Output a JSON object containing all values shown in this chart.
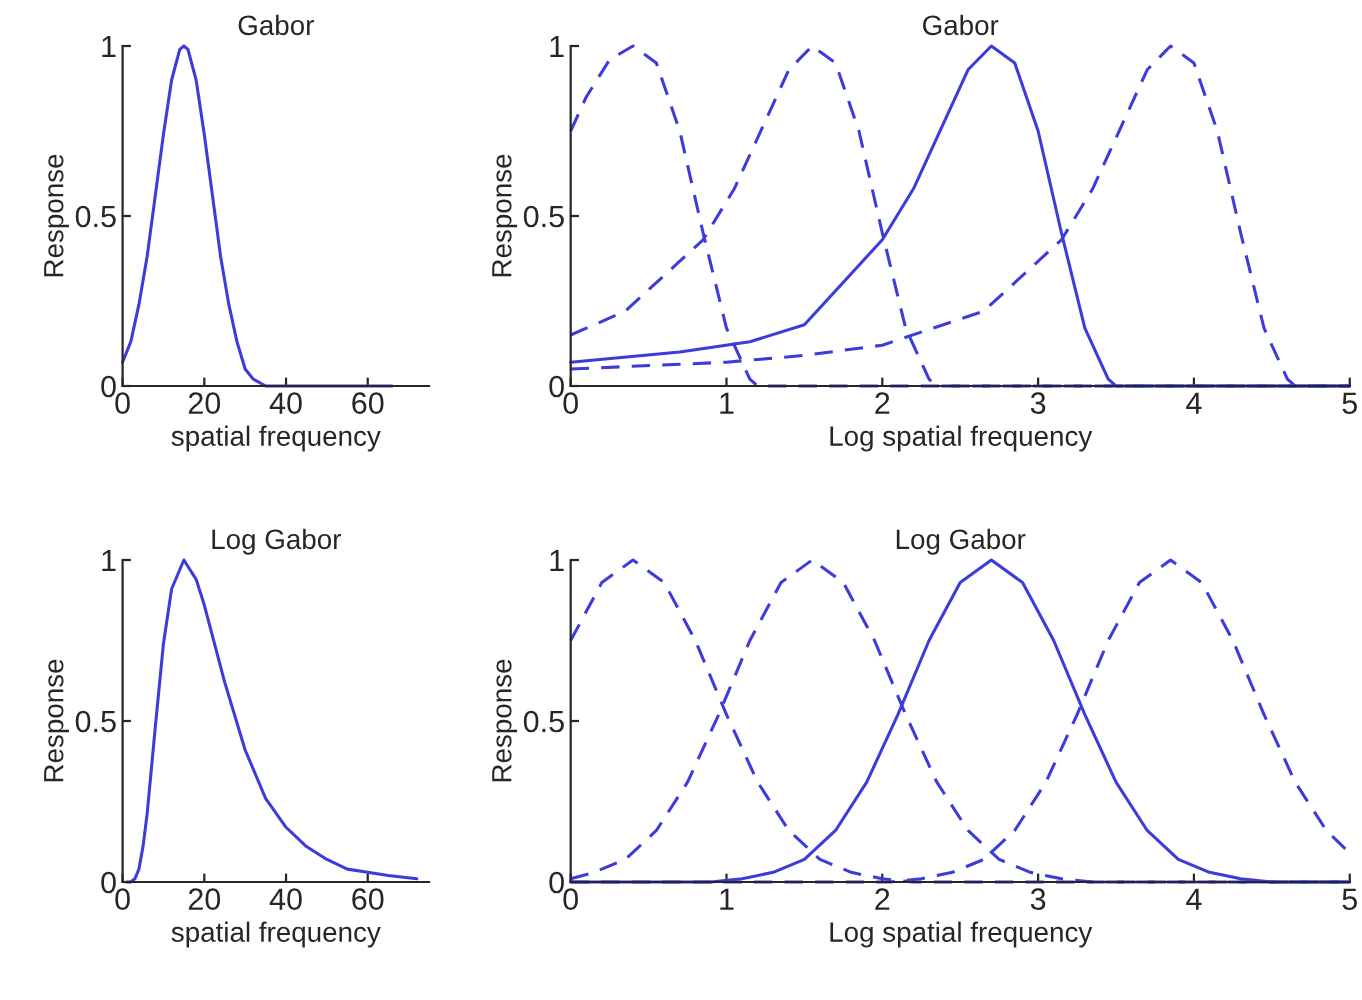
{
  "chart_data": [
    {
      "type": "line",
      "title": "Gabor",
      "xlabel": "spatial frequency",
      "ylabel": "Response",
      "xlim": [
        0,
        75
      ],
      "xticks": [
        0,
        20,
        40,
        60
      ],
      "ylim": [
        0,
        1
      ],
      "yticks": [
        0,
        0.5,
        1
      ],
      "grid": false,
      "legend": false,
      "marker": "none",
      "series": [
        {
          "color": "#3c3cdc",
          "line_style": "solid",
          "x": [
            0,
            2,
            4,
            6,
            8,
            10,
            12,
            14,
            15,
            16,
            18,
            20,
            22,
            24,
            26,
            28,
            30,
            32,
            35,
            40,
            50,
            60,
            66
          ],
          "values": [
            0.07,
            0.13,
            0.24,
            0.38,
            0.56,
            0.74,
            0.9,
            0.99,
            1,
            0.99,
            0.9,
            0.74,
            0.56,
            0.38,
            0.24,
            0.13,
            0.05,
            0.02,
            0,
            0,
            0,
            0,
            0
          ]
        }
      ]
    },
    {
      "type": "line",
      "title": "Gabor",
      "xlabel": "Log spatial frequency",
      "ylabel": "Response",
      "xlim": [
        0,
        5
      ],
      "xticks": [
        0,
        1,
        2,
        3,
        4,
        5
      ],
      "ylim": [
        0,
        1
      ],
      "yticks": [
        0,
        0.5,
        1
      ],
      "grid": false,
      "legend": false,
      "marker": "none",
      "series": [
        {
          "color": "#3c3cdc",
          "line_style": "dashed",
          "x": [
            0,
            0.1,
            0.25,
            0.4,
            0.55,
            0.7,
            0.85,
            1.0,
            1.15,
            1.2,
            2,
            3,
            4,
            5
          ],
          "values": [
            0.75,
            0.85,
            0.96,
            1,
            0.95,
            0.75,
            0.45,
            0.17,
            0.02,
            0,
            0,
            0,
            0,
            0
          ]
        },
        {
          "color": "#3c3cdc",
          "line_style": "dashed",
          "x": [
            0,
            0.35,
            0.85,
            1.05,
            1.25,
            1.4,
            1.55,
            1.7,
            1.85,
            2.0,
            2.15,
            2.3,
            2.35,
            3,
            4,
            5
          ],
          "values": [
            0.15,
            0.22,
            0.43,
            0.58,
            0.78,
            0.93,
            1,
            0.95,
            0.75,
            0.45,
            0.17,
            0.02,
            0,
            0,
            0,
            0
          ]
        },
        {
          "color": "#3c3cdc",
          "line_style": "solid",
          "x": [
            0,
            0.7,
            1.15,
            1.5,
            2.0,
            2.2,
            2.4,
            2.55,
            2.7,
            2.85,
            3.0,
            3.15,
            3.3,
            3.45,
            3.5,
            4,
            5
          ],
          "values": [
            0.07,
            0.1,
            0.13,
            0.18,
            0.43,
            0.58,
            0.78,
            0.93,
            1,
            0.95,
            0.75,
            0.45,
            0.17,
            0.02,
            0,
            0,
            0
          ]
        },
        {
          "color": "#3c3cdc",
          "line_style": "dashed",
          "x": [
            0,
            1,
            1.5,
            2.0,
            2.65,
            3.15,
            3.35,
            3.55,
            3.7,
            3.85,
            4.0,
            4.15,
            4.3,
            4.45,
            4.6,
            4.65,
            5
          ],
          "values": [
            0.05,
            0.07,
            0.09,
            0.12,
            0.22,
            0.43,
            0.58,
            0.78,
            0.93,
            1,
            0.95,
            0.75,
            0.45,
            0.17,
            0.02,
            0,
            0
          ]
        }
      ]
    },
    {
      "type": "line",
      "title": "Log Gabor",
      "xlabel": "spatial frequency",
      "ylabel": "Response",
      "xlim": [
        0,
        75
      ],
      "xticks": [
        0,
        20,
        40,
        60
      ],
      "ylim": [
        0,
        1
      ],
      "yticks": [
        0,
        0.5,
        1
      ],
      "grid": false,
      "legend": false,
      "marker": "none",
      "series": [
        {
          "color": "#3c3cdc",
          "line_style": "solid",
          "x": [
            1,
            2,
            3,
            4,
            5,
            6,
            8,
            10,
            12,
            15,
            18,
            20,
            25,
            30,
            35,
            40,
            45,
            50,
            55,
            60,
            65,
            72
          ],
          "values": [
            0,
            0,
            0.01,
            0.04,
            0.11,
            0.21,
            0.48,
            0.74,
            0.91,
            1,
            0.94,
            0.86,
            0.62,
            0.41,
            0.26,
            0.17,
            0.11,
            0.07,
            0.04,
            0.03,
            0.02,
            0.01
          ]
        }
      ]
    },
    {
      "type": "line",
      "title": "Log Gabor",
      "xlabel": "Log spatial frequency",
      "ylabel": "Response",
      "xlim": [
        0,
        5
      ],
      "xticks": [
        0,
        1,
        2,
        3,
        4,
        5
      ],
      "ylim": [
        0,
        1
      ],
      "yticks": [
        0,
        0.5,
        1
      ],
      "grid": false,
      "legend": false,
      "marker": "none",
      "series": [
        {
          "color": "#3c3cdc",
          "line_style": "dashed",
          "x": [
            0,
            0.2,
            0.4,
            0.6,
            0.8,
            1.0,
            1.2,
            1.4,
            1.6,
            1.8,
            2.0,
            2.2,
            5
          ],
          "values": [
            0.75,
            0.93,
            1,
            0.93,
            0.75,
            0.52,
            0.31,
            0.16,
            0.07,
            0.03,
            0.01,
            0,
            0
          ]
        },
        {
          "color": "#3c3cdc",
          "line_style": "dashed",
          "x": [
            0,
            0.15,
            0.35,
            0.55,
            0.75,
            0.95,
            1.15,
            1.35,
            1.55,
            1.75,
            1.95,
            2.15,
            2.35,
            2.55,
            2.75,
            2.95,
            3.15,
            3.35,
            5
          ],
          "values": [
            0.01,
            0.03,
            0.07,
            0.16,
            0.31,
            0.52,
            0.75,
            0.93,
            1,
            0.93,
            0.75,
            0.52,
            0.31,
            0.16,
            0.07,
            0.03,
            0.01,
            0,
            0
          ]
        },
        {
          "color": "#3c3cdc",
          "line_style": "solid",
          "x": [
            0,
            0.9,
            1.1,
            1.3,
            1.5,
            1.7,
            1.9,
            2.1,
            2.3,
            2.5,
            2.7,
            2.9,
            3.1,
            3.3,
            3.5,
            3.7,
            3.9,
            4.1,
            4.3,
            4.5,
            5
          ],
          "values": [
            0,
            0,
            0.01,
            0.03,
            0.07,
            0.16,
            0.31,
            0.52,
            0.75,
            0.93,
            1,
            0.93,
            0.75,
            0.52,
            0.31,
            0.16,
            0.07,
            0.03,
            0.01,
            0,
            0
          ]
        },
        {
          "color": "#3c3cdc",
          "line_style": "dashed",
          "x": [
            0,
            2.05,
            2.25,
            2.45,
            2.65,
            2.85,
            3.05,
            3.25,
            3.45,
            3.65,
            3.85,
            4.05,
            4.25,
            4.45,
            4.65,
            4.85,
            5.0
          ],
          "values": [
            0,
            0,
            0.01,
            0.03,
            0.07,
            0.16,
            0.31,
            0.52,
            0.75,
            0.93,
            1,
            0.93,
            0.75,
            0.52,
            0.31,
            0.16,
            0.09
          ]
        }
      ]
    }
  ]
}
